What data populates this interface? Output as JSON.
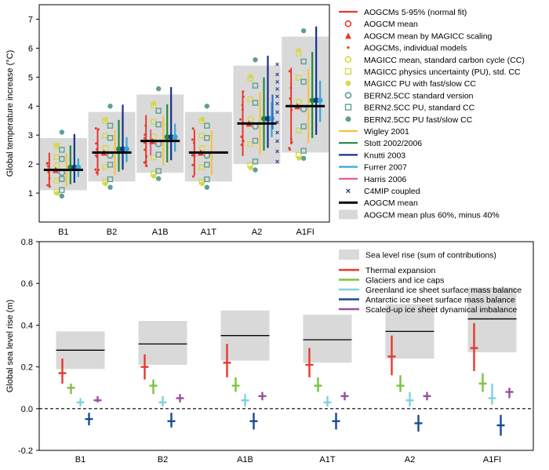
{
  "top": {
    "ylabel": "Global temperature increase (°C)",
    "ylim": [
      0,
      7.5
    ],
    "yticks": [
      1,
      2,
      3,
      4,
      5,
      6,
      7
    ],
    "categories": [
      "B1",
      "B2",
      "A1B",
      "A1T",
      "A2",
      "A1FI"
    ],
    "gray_boxes": [
      [
        1.1,
        2.9
      ],
      [
        1.4,
        3.8
      ],
      [
        1.7,
        4.4
      ],
      [
        1.4,
        3.8
      ],
      [
        2.0,
        5.4
      ],
      [
        2.4,
        6.4
      ]
    ],
    "aogcm_mean": [
      1.8,
      2.4,
      2.8,
      2.4,
      3.4,
      4.0
    ],
    "legend": [
      {
        "label": "AOGCMs 5-95% (normal fit)",
        "symbol": "line",
        "color": "#e8392b"
      },
      {
        "label": "AOGCM mean",
        "symbol": "ring",
        "color": "#e8392b"
      },
      {
        "label": "AOGCM mean by MAGICC scaling",
        "symbol": "triangle",
        "color": "#e8392b"
      },
      {
        "label": "AOGCMs, individual models",
        "symbol": "dot",
        "color": "#e8392b"
      },
      {
        "label": "MAGICC mean, standard carbon cycle (CC)",
        "symbol": "ring",
        "color": "#d4d94a"
      },
      {
        "label": "MAGICC physics uncertainty (PU), std. CC",
        "symbol": "square-open",
        "color": "#d4d94a"
      },
      {
        "label": "MAGICC PU with fast/slow CC",
        "symbol": "disc",
        "color": "#d4d94a"
      },
      {
        "label": "BERN2.5CC standard version",
        "symbol": "ring",
        "color": "#5f9e94"
      },
      {
        "label": "BERN2.5CC PU, standard CC",
        "symbol": "square-open",
        "color": "#5f9e94"
      },
      {
        "label": "BERN2.5CC PU fast/slow CC",
        "symbol": "star",
        "color": "#5f9e94"
      },
      {
        "label": "Wigley 2001",
        "symbol": "line",
        "color": "#f5c242"
      },
      {
        "label": "Stott 2002/2006",
        "symbol": "line",
        "color": "#1e8c3a"
      },
      {
        "label": "Knutti 2003",
        "symbol": "line",
        "color": "#1a2f8c"
      },
      {
        "label": "Furrer 2007",
        "symbol": "line",
        "color": "#34a8d6"
      },
      {
        "label": "Harris 2006",
        "symbol": "line",
        "color": "#e85590"
      },
      {
        "label": "C4MIP coupled",
        "symbol": "cross",
        "color": "#1a2f8c"
      },
      {
        "label": "AOGCM mean",
        "symbol": "thickline",
        "color": "#000000"
      },
      {
        "label": "AOGCM mean plus 60%, minus 40%",
        "symbol": "box",
        "color": "#d8d8d8"
      }
    ]
  },
  "bottom": {
    "ylabel": "Global sea level rise (m)",
    "ylim": [
      -0.2,
      0.8
    ],
    "yticks": [
      -0.2,
      0.0,
      0.2,
      0.4,
      0.6,
      0.8
    ],
    "ytick_labels": [
      "-0.2",
      "0.0",
      "0.2",
      "0.4",
      "0.6",
      "0.8"
    ],
    "categories": [
      "B1",
      "B2",
      "A1B",
      "A1T",
      "A2",
      "A1FI"
    ],
    "sum_boxes": [
      [
        0.19,
        0.37
      ],
      [
        0.21,
        0.42
      ],
      [
        0.23,
        0.47
      ],
      [
        0.22,
        0.45
      ],
      [
        0.24,
        0.5
      ],
      [
        0.27,
        0.58
      ]
    ],
    "sum_mean": [
      0.28,
      0.31,
      0.35,
      0.33,
      0.37,
      0.43
    ],
    "components": [
      {
        "name": "Thermal expansion",
        "color": "#e8392b",
        "bars": [
          [
            0.12,
            0.24,
            0.17
          ],
          [
            0.14,
            0.26,
            0.2
          ],
          [
            0.15,
            0.31,
            0.22
          ],
          [
            0.15,
            0.29,
            0.21
          ],
          [
            0.16,
            0.35,
            0.25
          ],
          [
            0.18,
            0.41,
            0.29
          ]
        ]
      },
      {
        "name": "Glaciers and ice caps",
        "color": "#7cc242",
        "bars": [
          [
            0.07,
            0.12,
            0.1
          ],
          [
            0.07,
            0.14,
            0.11
          ],
          [
            0.08,
            0.15,
            0.11
          ],
          [
            0.08,
            0.15,
            0.11
          ],
          [
            0.08,
            0.16,
            0.11
          ],
          [
            0.08,
            0.17,
            0.12
          ]
        ]
      },
      {
        "name": "Greenland ice sheet surface mass balance",
        "color": "#7fd3d8",
        "bars": [
          [
            0.01,
            0.05,
            0.03
          ],
          [
            0.01,
            0.06,
            0.03
          ],
          [
            0.01,
            0.07,
            0.04
          ],
          [
            0.01,
            0.06,
            0.03
          ],
          [
            0.01,
            0.08,
            0.04
          ],
          [
            0.02,
            0.12,
            0.05
          ]
        ]
      },
      {
        "name": "Antarctic ice sheet surface mass balance",
        "color": "#1a4a96",
        "bars": [
          [
            -0.08,
            -0.02,
            -0.05
          ],
          [
            -0.09,
            -0.02,
            -0.06
          ],
          [
            -0.1,
            -0.02,
            -0.06
          ],
          [
            -0.1,
            -0.02,
            -0.06
          ],
          [
            -0.11,
            -0.03,
            -0.07
          ],
          [
            -0.13,
            -0.03,
            -0.08
          ]
        ]
      },
      {
        "name": "Scaled-up ice sheet dynamical imbalance",
        "color": "#9b4ea0",
        "bars": [
          [
            0.03,
            0.06,
            0.04
          ],
          [
            0.03,
            0.07,
            0.05
          ],
          [
            0.04,
            0.08,
            0.06
          ],
          [
            0.04,
            0.08,
            0.06
          ],
          [
            0.04,
            0.08,
            0.06
          ],
          [
            0.05,
            0.1,
            0.08
          ]
        ]
      }
    ],
    "legend_sum_label": "Sea level rise (sum of contributions)"
  },
  "chart_data": [
    {
      "type": "scatter",
      "title": "",
      "xlabel": "",
      "ylabel": "Global temperature increase (°C)",
      "ylim": [
        0,
        7.5
      ],
      "categories": [
        "B1",
        "B2",
        "A1B",
        "A1T",
        "A2",
        "A1FI"
      ],
      "series": [
        {
          "name": "AOGCM mean",
          "values": [
            1.8,
            2.4,
            2.8,
            2.4,
            3.4,
            4.0
          ]
        },
        {
          "name": "AOGCM mean plus 60%, minus 40% (low)",
          "values": [
            1.1,
            1.4,
            1.7,
            1.4,
            2.0,
            2.4
          ]
        },
        {
          "name": "AOGCM mean plus 60%, minus 40% (high)",
          "values": [
            2.9,
            3.8,
            4.4,
            3.8,
            5.4,
            6.4
          ]
        },
        {
          "name": "AOGCM mean by MAGICC scaling",
          "values": [
            1.8,
            2.4,
            2.8,
            2.4,
            3.4,
            4.0
          ]
        }
      ]
    },
    {
      "type": "bar",
      "title": "",
      "xlabel": "",
      "ylabel": "Global sea level rise (m)",
      "ylim": [
        -0.2,
        0.8
      ],
      "categories": [
        "B1",
        "B2",
        "A1B",
        "A1T",
        "A2",
        "A1FI"
      ],
      "series": [
        {
          "name": "Sea level rise (sum of contributions)",
          "values": [
            0.28,
            0.31,
            0.35,
            0.33,
            0.37,
            0.43
          ]
        },
        {
          "name": "Thermal expansion",
          "values": [
            0.17,
            0.2,
            0.22,
            0.21,
            0.25,
            0.29
          ]
        },
        {
          "name": "Glaciers and ice caps",
          "values": [
            0.1,
            0.11,
            0.11,
            0.11,
            0.11,
            0.12
          ]
        },
        {
          "name": "Greenland ice sheet surface mass balance",
          "values": [
            0.03,
            0.03,
            0.04,
            0.03,
            0.04,
            0.05
          ]
        },
        {
          "name": "Antarctic ice sheet surface mass balance",
          "values": [
            -0.05,
            -0.06,
            -0.06,
            -0.06,
            -0.07,
            -0.08
          ]
        },
        {
          "name": "Scaled-up ice sheet dynamical imbalance",
          "values": [
            0.04,
            0.05,
            0.06,
            0.06,
            0.06,
            0.08
          ]
        }
      ]
    }
  ]
}
